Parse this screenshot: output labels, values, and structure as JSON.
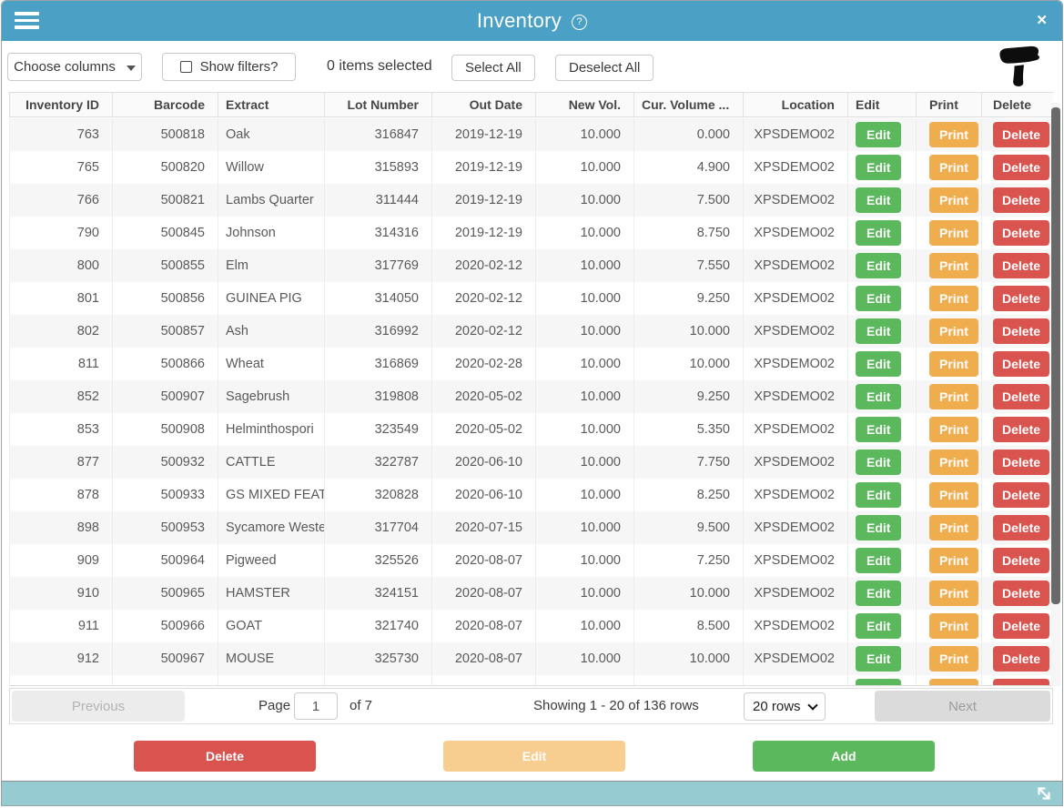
{
  "window": {
    "title": "Inventory",
    "close_glyph": "✕"
  },
  "toolbar": {
    "choose_columns_label": "Choose columns",
    "show_filters_label": "Show filters?",
    "items_selected_text": "0 items selected",
    "select_all_label": "Select All",
    "deselect_all_label": "Deselect All"
  },
  "table": {
    "columns": [
      "Inventory ID",
      "Barcode",
      "Extract",
      "Lot Number",
      "Out Date",
      "New Vol.",
      "Cur. Volume ...",
      "Location",
      "Edit",
      "Print",
      "Delete"
    ],
    "row_buttons": {
      "edit": "Edit",
      "print": "Print",
      "delete": "Delete"
    },
    "rows": [
      {
        "id": "763",
        "barcode": "500818",
        "extract": "Oak",
        "lot": "316847",
        "out_date": "2019-12-19",
        "new_vol": "10.000",
        "cur_vol": "0.000",
        "location": "XPSDEMO02"
      },
      {
        "id": "765",
        "barcode": "500820",
        "extract": "Willow",
        "lot": "315893",
        "out_date": "2019-12-19",
        "new_vol": "10.000",
        "cur_vol": "4.900",
        "location": "XPSDEMO02"
      },
      {
        "id": "766",
        "barcode": "500821",
        "extract": "Lambs Quarter",
        "lot": "311444",
        "out_date": "2019-12-19",
        "new_vol": "10.000",
        "cur_vol": "7.500",
        "location": "XPSDEMO02"
      },
      {
        "id": "790",
        "barcode": "500845",
        "extract": "Johnson",
        "lot": "314316",
        "out_date": "2019-12-19",
        "new_vol": "10.000",
        "cur_vol": "8.750",
        "location": "XPSDEMO02"
      },
      {
        "id": "800",
        "barcode": "500855",
        "extract": "Elm",
        "lot": "317769",
        "out_date": "2020-02-12",
        "new_vol": "10.000",
        "cur_vol": "7.550",
        "location": "XPSDEMO02"
      },
      {
        "id": "801",
        "barcode": "500856",
        "extract": "GUINEA PIG",
        "lot": "314050",
        "out_date": "2020-02-12",
        "new_vol": "10.000",
        "cur_vol": "9.250",
        "location": "XPSDEMO02"
      },
      {
        "id": "802",
        "barcode": "500857",
        "extract": "Ash",
        "lot": "316992",
        "out_date": "2020-02-12",
        "new_vol": "10.000",
        "cur_vol": "10.000",
        "location": "XPSDEMO02"
      },
      {
        "id": "811",
        "barcode": "500866",
        "extract": "Wheat",
        "lot": "316869",
        "out_date": "2020-02-28",
        "new_vol": "10.000",
        "cur_vol": "10.000",
        "location": "XPSDEMO02"
      },
      {
        "id": "852",
        "barcode": "500907",
        "extract": "Sagebrush",
        "lot": "319808",
        "out_date": "2020-05-02",
        "new_vol": "10.000",
        "cur_vol": "9.250",
        "location": "XPSDEMO02"
      },
      {
        "id": "853",
        "barcode": "500908",
        "extract": "Helminthospori",
        "lot": "323549",
        "out_date": "2020-05-02",
        "new_vol": "10.000",
        "cur_vol": "5.350",
        "location": "XPSDEMO02"
      },
      {
        "id": "877",
        "barcode": "500932",
        "extract": "CATTLE",
        "lot": "322787",
        "out_date": "2020-06-10",
        "new_vol": "10.000",
        "cur_vol": "7.750",
        "location": "XPSDEMO02"
      },
      {
        "id": "878",
        "barcode": "500933",
        "extract": "GS MIXED FEATH",
        "lot": "320828",
        "out_date": "2020-06-10",
        "new_vol": "10.000",
        "cur_vol": "8.250",
        "location": "XPSDEMO02"
      },
      {
        "id": "898",
        "barcode": "500953",
        "extract": "Sycamore Weste",
        "lot": "317704",
        "out_date": "2020-07-15",
        "new_vol": "10.000",
        "cur_vol": "9.500",
        "location": "XPSDEMO02"
      },
      {
        "id": "909",
        "barcode": "500964",
        "extract": "Pigweed",
        "lot": "325526",
        "out_date": "2020-08-07",
        "new_vol": "10.000",
        "cur_vol": "7.250",
        "location": "XPSDEMO02"
      },
      {
        "id": "910",
        "barcode": "500965",
        "extract": "HAMSTER",
        "lot": "324151",
        "out_date": "2020-08-07",
        "new_vol": "10.000",
        "cur_vol": "10.000",
        "location": "XPSDEMO02"
      },
      {
        "id": "911",
        "barcode": "500966",
        "extract": "GOAT",
        "lot": "321740",
        "out_date": "2020-08-07",
        "new_vol": "10.000",
        "cur_vol": "8.500",
        "location": "XPSDEMO02"
      },
      {
        "id": "912",
        "barcode": "500967",
        "extract": "MOUSE",
        "lot": "325730",
        "out_date": "2020-08-07",
        "new_vol": "10.000",
        "cur_vol": "10.000",
        "location": "XPSDEMO02"
      },
      {
        "id": "",
        "barcode": "",
        "extract": "",
        "lot": "",
        "out_date": "",
        "new_vol": "",
        "cur_vol": "",
        "location": ""
      }
    ]
  },
  "pagination": {
    "previous_label": "Previous",
    "page_label": "Page",
    "page_value": "1",
    "of_label": "of 7",
    "showing_text": "Showing 1 - 20 of 136 rows",
    "rows_per_page": "20 rows",
    "next_label": "Next"
  },
  "footer_buttons": {
    "delete_label": "Delete",
    "edit_label": "Edit",
    "add_label": "Add"
  },
  "colors": {
    "titlebar_blue": "#4aa1c5",
    "bottombar_teal": "#96ccd1",
    "edit_green": "#5cb85c",
    "print_orange": "#f0ad4e",
    "delete_red": "#d9534f",
    "footer_edit_pale_orange": "#f7cd90"
  }
}
